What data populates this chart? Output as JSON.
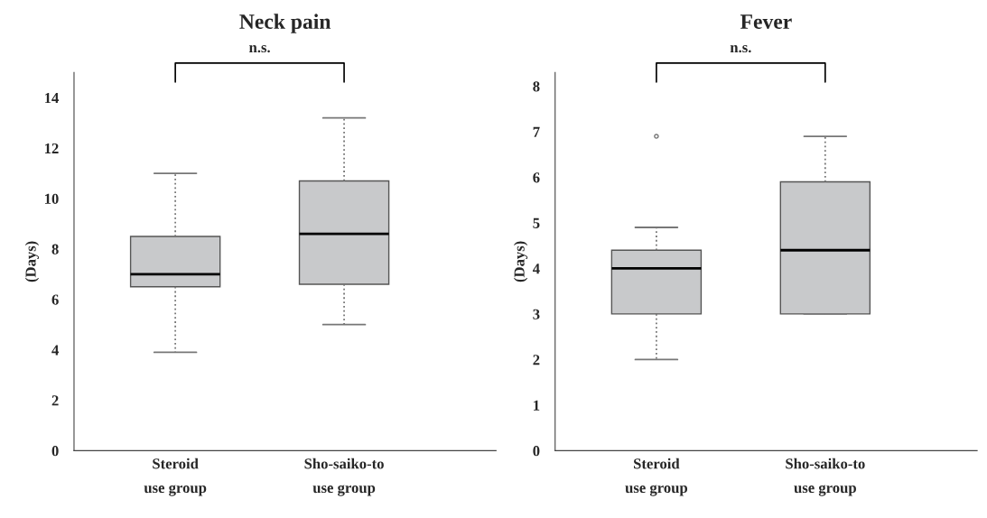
{
  "chart_data": [
    {
      "type": "box",
      "title": "Neck pain",
      "ylabel": "(Days)",
      "categories": [
        "Steroid\nuse group",
        "Sho-saiko-to\nuse group"
      ],
      "color": "#c8c9cb",
      "boxes": [
        {
          "low": 3.9,
          "q1": 6.5,
          "median": 7,
          "q3": 8.5,
          "high": 11
        },
        {
          "low": 5,
          "q1": 6.6,
          "median": 8.6,
          "q3": 10.7,
          "high": 13.2
        }
      ],
      "ylim": [
        0,
        15
      ],
      "yticks": [
        0,
        2,
        4,
        6,
        8,
        10,
        12,
        14
      ],
      "grid": false,
      "annotations": [
        "n.s."
      ]
    },
    {
      "type": "box",
      "title": "Fever",
      "ylabel": "(Days)",
      "categories": [
        "Steroid\nuse group",
        "Sho-saiko-to\nuse group"
      ],
      "color": "#c8c9cb",
      "boxes": [
        {
          "low": 2,
          "q1": 3,
          "median": 4,
          "q3": 4.4,
          "high": 4.9,
          "outliers": [
            6.9
          ]
        },
        {
          "low": 3,
          "q1": 3,
          "median": 4.4,
          "q3": 5.9,
          "high": 6.9
        }
      ],
      "ylim": [
        0,
        8.3
      ],
      "yticks": [
        0,
        1,
        2,
        3,
        4,
        5,
        6,
        7,
        8
      ],
      "grid": false,
      "annotations": [
        "n.s."
      ]
    }
  ]
}
